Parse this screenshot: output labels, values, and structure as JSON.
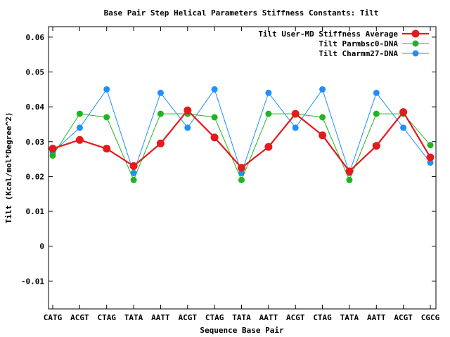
{
  "chart_data": {
    "type": "line",
    "title": "Base Pair Step Helical Parameters Stiffness Constants: Tilt",
    "xlabel": "Sequence Base Pair",
    "ylabel": "Tilt (Kcal/mol*Degree^2)",
    "ylim": [
      -0.018,
      0.063
    ],
    "y_ticks": [
      "0.06",
      "0.05",
      "0.04",
      "0.03",
      "0.02",
      "0.01",
      "0",
      "-0.01"
    ],
    "y_tick_values": [
      0.06,
      0.05,
      0.04,
      0.03,
      0.02,
      0.01,
      0,
      -0.01
    ],
    "categories": [
      "CATG",
      "ACGT",
      "CTAG",
      "TATA",
      "AATT",
      "ACGT",
      "CTAG",
      "TATA",
      "AATT",
      "ACGT",
      "CTAG",
      "TATA",
      "AATT",
      "ACGT",
      "CGCG"
    ],
    "legend_position": "top-right",
    "grid": false,
    "series": [
      {
        "name": "Tilt User-MD Stiffness Average",
        "color": "#e41a1c",
        "values": [
          0.028,
          0.0305,
          0.028,
          0.023,
          0.0295,
          0.039,
          0.0312,
          0.0225,
          0.0285,
          0.038,
          0.0318,
          0.0215,
          0.0288,
          0.0385,
          0.0255
        ]
      },
      {
        "name": "Tilt Parmbsc0-DNA",
        "color": "#1fb51f",
        "values": [
          0.026,
          0.038,
          0.037,
          0.019,
          0.038,
          0.038,
          0.037,
          0.019,
          0.038,
          0.038,
          0.037,
          0.019,
          0.038,
          0.038,
          0.029
        ]
      },
      {
        "name": "Tilt Charmm27-DNA",
        "color": "#1e90ff",
        "values": [
          0.027,
          0.034,
          0.045,
          0.021,
          0.044,
          0.034,
          0.045,
          0.021,
          0.044,
          0.034,
          0.045,
          0.021,
          0.044,
          0.034,
          0.024
        ]
      }
    ]
  }
}
